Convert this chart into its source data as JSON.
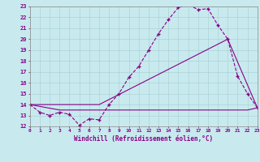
{
  "xlabel": "Windchill (Refroidissement éolien,°C)",
  "bg_color": "#c8eaee",
  "grid_color": "#aad4d8",
  "line_color": "#880088",
  "xlim": [
    0,
    23
  ],
  "ylim": [
    12,
    23
  ],
  "xticks": [
    0,
    1,
    2,
    3,
    4,
    5,
    6,
    7,
    8,
    9,
    10,
    11,
    12,
    13,
    14,
    15,
    16,
    17,
    18,
    19,
    20,
    21,
    22,
    23
  ],
  "yticks": [
    12,
    13,
    14,
    15,
    16,
    17,
    18,
    19,
    20,
    21,
    22,
    23
  ],
  "line1_x": [
    0,
    1,
    2,
    3,
    4,
    5,
    6,
    7,
    8,
    9,
    10,
    11,
    12,
    13,
    14,
    15,
    16,
    17,
    18,
    19,
    20,
    21,
    22,
    23
  ],
  "line1_y": [
    14,
    13.3,
    13.0,
    13.3,
    13.1,
    12.1,
    12.7,
    12.6,
    14.0,
    15.0,
    16.5,
    17.5,
    19.0,
    20.5,
    21.8,
    22.9,
    23.2,
    22.7,
    22.8,
    21.3,
    20.0,
    16.6,
    15.0,
    13.7
  ],
  "line2_x": [
    0,
    7,
    20,
    23
  ],
  "line2_y": [
    14,
    14.0,
    20.0,
    13.7
  ],
  "line3_x": [
    0,
    3,
    7,
    14,
    18,
    22,
    23
  ],
  "line3_y": [
    14,
    13.5,
    13.5,
    13.5,
    13.5,
    13.5,
    13.7
  ]
}
